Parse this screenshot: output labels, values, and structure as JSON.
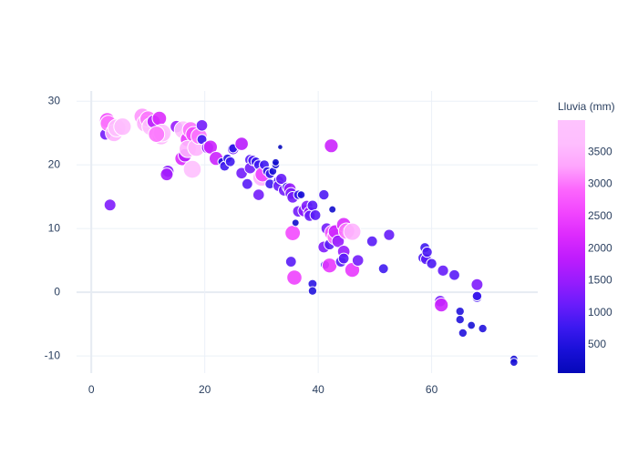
{
  "chart_data": {
    "type": "scatter",
    "x": [
      2.5,
      2.8,
      3,
      4,
      4.5,
      5.5,
      3.3,
      9,
      9.5,
      10,
      10.5,
      11,
      12,
      12.3,
      12.5,
      11.5,
      13.5,
      13.3,
      15,
      16,
      16.2,
      16.5,
      17,
      17.5,
      17,
      17.8,
      18,
      18.5,
      19,
      19.5,
      19.5,
      20.5,
      21,
      22,
      23,
      23.5,
      24,
      24.5,
      25,
      25,
      26.5,
      26.5,
      27.5,
      28,
      28,
      28.5,
      29,
      29.5,
      29.5,
      30,
      30.2,
      30.5,
      31,
      31.5,
      31.5,
      32,
      32.5,
      32.5,
      33,
      33,
      33.3,
      33.5,
      34,
      34.5,
      35,
      35,
      35.2,
      35.5,
      35.5,
      35.2,
      35.8,
      36,
      36.5,
      37,
      36.5,
      37.5,
      38,
      38.5,
      38.5,
      39,
      39,
      39,
      39.5,
      41,
      41,
      41.2,
      41.5,
      42,
      42,
      42.3,
      42.5,
      42.5,
      43,
      43,
      43.5,
      44,
      44.5,
      44.5,
      44.5,
      45,
      45,
      46,
      46,
      47,
      49.5,
      51.5,
      52.5,
      58.5,
      58.8,
      59,
      59.2,
      60,
      61.5,
      61.7,
      62,
      64,
      65,
      65,
      65.5,
      67,
      68,
      68,
      68,
      69,
      74.5,
      74.5
    ],
    "y": [
      24.8,
      27,
      26.5,
      25,
      25.8,
      26,
      13.7,
      27.6,
      26.5,
      27.2,
      26,
      26.8,
      27.3,
      24.5,
      25,
      24.8,
      19,
      18.5,
      26,
      21,
      25.5,
      21.5,
      24,
      25.5,
      22.5,
      19.3,
      24.8,
      22.7,
      24.5,
      26.2,
      24,
      22.7,
      22.8,
      21,
      20.5,
      19.8,
      21,
      20.5,
      22.5,
      22.6,
      23.3,
      18.7,
      17,
      20.8,
      19.5,
      20.7,
      20.5,
      20,
      15.3,
      18,
      18.5,
      20,
      19,
      17,
      18.6,
      19,
      20,
      20.4,
      17.5,
      16.7,
      22.8,
      17.8,
      16,
      16.5,
      16.2,
      15.2,
      15.5,
      14.9,
      9.3,
      4.8,
      2.3,
      10.9,
      15.3,
      15.3,
      12.7,
      12.8,
      13.5,
      12.5,
      12,
      13.6,
      1.3,
      0.2,
      12.1,
      15.3,
      7.1,
      4.3,
      10,
      7.5,
      4.2,
      23,
      9.3,
      13,
      8.7,
      9.5,
      8,
      4.8,
      10.6,
      6.4,
      5.3,
      9.6,
      9.6,
      3.5,
      9.5,
      5,
      8,
      3.7,
      9,
      5.4,
      7,
      5.2,
      6.3,
      4.5,
      -1.4,
      -2,
      3.4,
      2.7,
      -3,
      -4.3,
      -6.4,
      -5.2,
      1.2,
      -0.8,
      -0.6,
      -5.7,
      -10.5,
      -11
    ],
    "size": [
      1200,
      2600,
      3000,
      3500,
      3800,
      3600,
      1300,
      3200,
      3500,
      3000,
      3800,
      1800,
      2200,
      3500,
      3800,
      3000,
      1400,
      1600,
      1500,
      2200,
      3800,
      1800,
      2400,
      3000,
      3500,
      3800,
      2600,
      3500,
      3000,
      1200,
      800,
      1400,
      2000,
      2000,
      400,
      800,
      600,
      800,
      1200,
      600,
      1800,
      1200,
      1000,
      1000,
      1200,
      900,
      700,
      800,
      1200,
      3500,
      2500,
      800,
      600,
      800,
      700,
      400,
      400,
      300,
      900,
      1100,
      100,
      1100,
      1200,
      800,
      1500,
      600,
      1300,
      1200,
      2600,
      1000,
      2500,
      300,
      700,
      400,
      1200,
      1400,
      1300,
      1500,
      1100,
      1000,
      600,
      500,
      1000,
      900,
      1300,
      600,
      1200,
      1000,
      2400,
      2000,
      2800,
      300,
      3000,
      2000,
      1500,
      1000,
      2200,
      1500,
      1000,
      500,
      3000,
      2400,
      3500,
      1200,
      1000,
      800,
      1100,
      900,
      800,
      1000,
      900,
      900,
      1200,
      2000,
      1100,
      1000,
      500,
      500,
      500,
      400,
      1300,
      900,
      700,
      500,
      400,
      400
    ],
    "xlim": [
      -2.6,
      78.7
    ],
    "ylim": [
      -12.7,
      31.6
    ],
    "xticks": [
      0,
      20,
      40,
      60
    ],
    "yticks": [
      -10,
      0,
      10,
      20,
      30
    ],
    "grid": true,
    "colorbar": {
      "title": "Lluvia (mm)",
      "lim": [
        60,
        4000
      ],
      "ticks": [
        500,
        1000,
        1500,
        2000,
        2500,
        3000,
        3500
      ],
      "colorscale": [
        "#0508b8",
        "#1910d8",
        "#3c19f0",
        "#6b1cfb",
        "#981cfd",
        "#bf1cfd",
        "#dd2bfd",
        "#f246fe",
        "#fc67fd",
        "#fea5fd",
        "#febefe",
        "#fec3fe"
      ]
    }
  }
}
